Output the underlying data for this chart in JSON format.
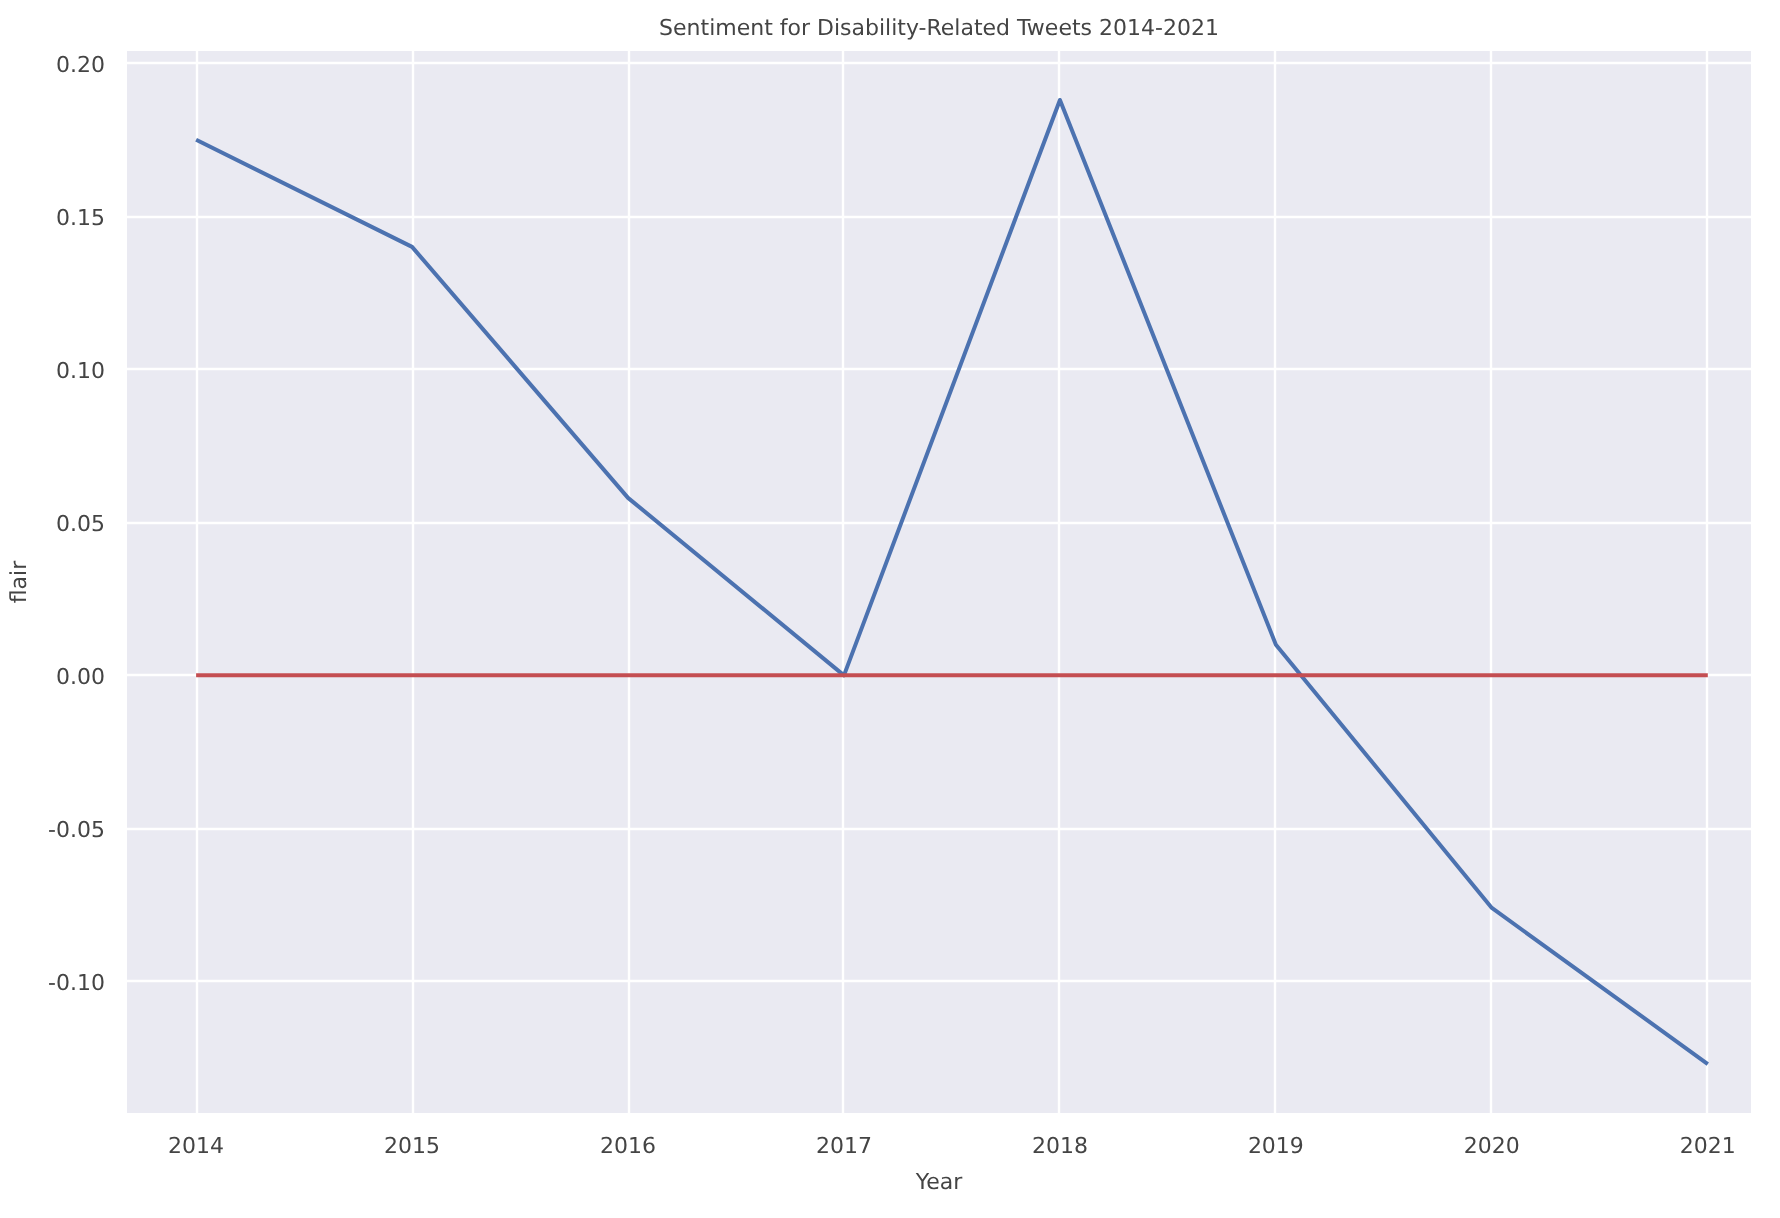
{
  "chart_data": {
    "type": "line",
    "title": "Sentiment for Disability-Related Tweets 2014-2021",
    "xlabel": "Year",
    "ylabel": "flair",
    "x": [
      2014,
      2015,
      2016,
      2017,
      2018,
      2019,
      2020,
      2021
    ],
    "series": [
      {
        "color": "#4c72b0",
        "values": [
          0.175,
          0.14,
          0.058,
          0.0,
          0.188,
          0.01,
          -0.076,
          -0.127
        ]
      },
      {
        "color": "#c44e52",
        "values": [
          0,
          0,
          0,
          0,
          0,
          0,
          0,
          0
        ]
      }
    ],
    "xlim": [
      2013.68,
      2021.2
    ],
    "ylim": [
      -0.143,
      0.204
    ],
    "xticks": [
      2014,
      2015,
      2016,
      2017,
      2018,
      2019,
      2020,
      2021
    ],
    "yticks": [
      {
        "value": -0.1,
        "label": "-0.10"
      },
      {
        "value": -0.05,
        "label": "-0.05"
      },
      {
        "value": 0,
        "label": "0.00"
      },
      {
        "value": 0.05,
        "label": "0.05"
      },
      {
        "value": 0.1,
        "label": "0.10"
      },
      {
        "value": 0.15,
        "label": "0.15"
      },
      {
        "value": 0.2,
        "label": "0.20"
      }
    ],
    "grid": true
  }
}
